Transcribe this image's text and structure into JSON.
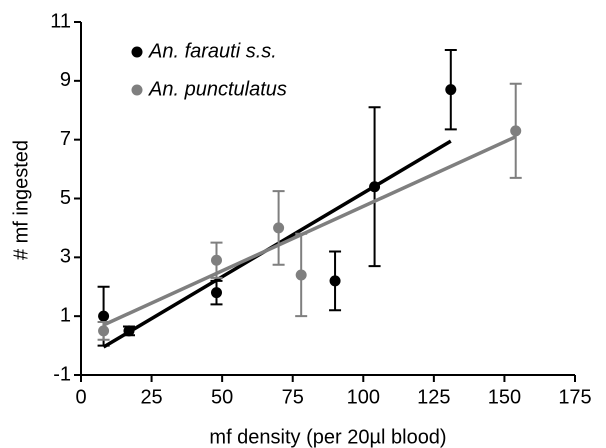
{
  "chart_data": {
    "type": "scatter",
    "xlabel": "mf density  (per 20µl blood)",
    "ylabel": "# mf ingested",
    "xlim": [
      0,
      175
    ],
    "xticks": [
      0,
      25,
      50,
      75,
      100,
      125,
      150,
      175
    ],
    "ylim": [
      -1,
      11
    ],
    "yticks": [
      -1,
      1,
      3,
      5,
      7,
      9,
      11
    ],
    "legend": "upper left",
    "series": [
      {
        "name": "An. farauti s.s.",
        "color": "#000000",
        "x": [
          8,
          17,
          48,
          90,
          104,
          131
        ],
        "values": [
          1.0,
          0.5,
          1.8,
          2.2,
          5.4,
          8.7
        ],
        "errors": [
          1.0,
          0.15,
          0.4,
          1.0,
          2.7,
          1.35
        ],
        "fit_x": [
          8,
          131
        ],
        "fit_y": [
          -0.05,
          6.95
        ]
      },
      {
        "name": "An. punctulatus",
        "color": "#7f7f7f",
        "x": [
          8,
          48,
          70,
          78,
          154
        ],
        "values": [
          0.5,
          2.9,
          4.0,
          2.4,
          7.3
        ],
        "errors": [
          0.3,
          0.6,
          1.25,
          1.4,
          1.6
        ],
        "fit_x": [
          8,
          154
        ],
        "fit_y": [
          0.7,
          7.1
        ]
      }
    ]
  }
}
